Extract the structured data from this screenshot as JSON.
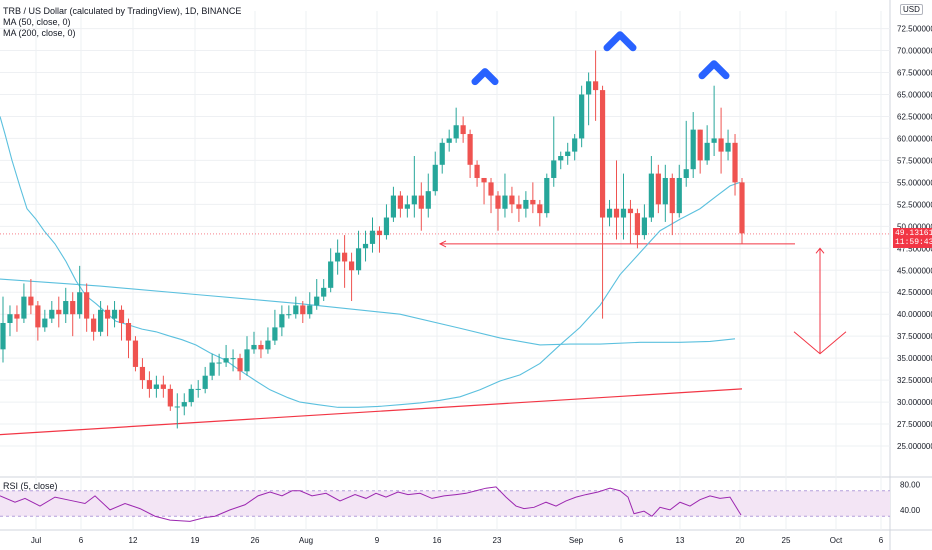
{
  "legend": {
    "symbol": "TRB / US Dollar (calculated by TradingView), 1D, BINANCE",
    "ma50": "MA (50, close, 0)",
    "ma200": "MA (200, close, 0)"
  },
  "rsi": {
    "label": "RSI (5, close)",
    "ticks": [
      "80.00",
      "40.00"
    ]
  },
  "currency_badge": "USD",
  "last_price": {
    "value": "49.131613",
    "countdown": "11:59:43"
  },
  "colors": {
    "up": "#26a69a",
    "down": "#ef5350",
    "ma": "#5bc0de",
    "annotation_red": "#f23645",
    "annotation_blue": "#2962ff",
    "rsi_line": "#9c27b0",
    "rsi_band": "#f3e5f5",
    "grid": "#eef0f3"
  },
  "chart_data": {
    "type": "candlestick",
    "ylim": [
      22.5,
      74.5
    ],
    "yticks": [
      "72.500000",
      "70.000000",
      "67.500000",
      "65.000000",
      "62.500000",
      "60.000000",
      "57.500000",
      "55.000000",
      "52.500000",
      "50.000000",
      "47.500000",
      "45.000000",
      "42.500000",
      "40.000000",
      "37.500000",
      "35.000000",
      "32.500000",
      "30.000000",
      "27.500000",
      "25.000000"
    ],
    "xticks": [
      "Jul",
      "6",
      "12",
      "19",
      "26",
      "Aug",
      "9",
      "16",
      "23",
      "Sep",
      "6",
      "13",
      "20",
      "25",
      "Oct",
      "6"
    ],
    "candles": [
      [
        36.0,
        39.0,
        34.5,
        42.0
      ],
      [
        39.0,
        40.0,
        37.5,
        41.0
      ],
      [
        40.0,
        39.5,
        38.0,
        41.0
      ],
      [
        39.5,
        42.0,
        39.0,
        43.5
      ],
      [
        42.0,
        41.0,
        40.0,
        44.0
      ],
      [
        41.0,
        38.5,
        37.0,
        41.5
      ],
      [
        38.5,
        39.5,
        38.0,
        40.5
      ],
      [
        39.5,
        40.5,
        39.0,
        41.5
      ],
      [
        40.5,
        40.0,
        38.5,
        42.0
      ],
      [
        40.0,
        41.5,
        39.0,
        43.0
      ],
      [
        41.5,
        40.0,
        37.5,
        42.5
      ],
      [
        40.0,
        42.5,
        39.5,
        45.5
      ],
      [
        42.5,
        39.5,
        38.0,
        43.5
      ],
      [
        39.5,
        38.0,
        37.0,
        40.0
      ],
      [
        38.0,
        40.5,
        37.5,
        41.5
      ],
      [
        40.5,
        39.5,
        37.5,
        41.0
      ],
      [
        39.5,
        40.5,
        38.5,
        41.5
      ],
      [
        40.5,
        39.0,
        37.0,
        41.0
      ],
      [
        39.0,
        37.0,
        35.0,
        39.5
      ],
      [
        37.0,
        34.0,
        33.5,
        37.5
      ],
      [
        34.0,
        32.5,
        31.5,
        35.0
      ],
      [
        32.5,
        31.5,
        30.5,
        33.5
      ],
      [
        31.5,
        32.0,
        30.5,
        33.0
      ],
      [
        32.0,
        31.5,
        30.5,
        33.0
      ],
      [
        31.5,
        29.5,
        29.0,
        32.0
      ],
      [
        29.5,
        29.5,
        27.0,
        31.0
      ],
      [
        29.5,
        30.0,
        28.5,
        31.0
      ],
      [
        30.0,
        31.5,
        29.5,
        32.0
      ],
      [
        31.5,
        31.5,
        30.5,
        32.5
      ],
      [
        31.5,
        33.0,
        31.0,
        34.0
      ],
      [
        33.0,
        34.5,
        32.5,
        35.5
      ],
      [
        34.5,
        34.5,
        33.0,
        35.5
      ],
      [
        34.5,
        35.0,
        34.0,
        36.5
      ],
      [
        35.0,
        35.0,
        33.5,
        36.0
      ],
      [
        35.0,
        33.5,
        32.5,
        35.5
      ],
      [
        33.5,
        36.0,
        33.0,
        37.5
      ],
      [
        36.0,
        36.5,
        35.5,
        38.0
      ],
      [
        36.5,
        36.0,
        35.0,
        37.0
      ],
      [
        36.0,
        37.0,
        35.5,
        38.5
      ],
      [
        37.0,
        38.5,
        36.5,
        40.5
      ],
      [
        38.5,
        40.0,
        37.5,
        41.0
      ],
      [
        40.0,
        40.0,
        39.5,
        41.0
      ],
      [
        40.0,
        41.0,
        39.5,
        42.0
      ],
      [
        41.0,
        40.0,
        39.0,
        41.5
      ],
      [
        40.0,
        41.0,
        39.5,
        42.5
      ],
      [
        41.0,
        42.0,
        40.5,
        44.0
      ],
      [
        42.0,
        43.0,
        41.5,
        44.0
      ],
      [
        43.0,
        46.0,
        42.5,
        47.5
      ],
      [
        46.0,
        47.0,
        44.5,
        48.5
      ],
      [
        47.0,
        46.0,
        43.0,
        49.0
      ],
      [
        46.0,
        45.0,
        41.5,
        47.0
      ],
      [
        45.0,
        47.5,
        44.5,
        49.5
      ],
      [
        47.5,
        48.0,
        46.0,
        49.5
      ],
      [
        48.0,
        49.5,
        47.0,
        51.0
      ],
      [
        49.5,
        49.0,
        47.0,
        50.0
      ],
      [
        49.0,
        51.0,
        48.5,
        52.5
      ],
      [
        51.0,
        53.5,
        50.5,
        54.5
      ],
      [
        53.5,
        52.0,
        51.0,
        54.0
      ],
      [
        52.0,
        52.5,
        51.0,
        53.5
      ],
      [
        52.5,
        53.5,
        51.0,
        58.0
      ],
      [
        53.5,
        52.0,
        49.5,
        55.0
      ],
      [
        52.0,
        54.0,
        51.0,
        56.0
      ],
      [
        54.0,
        57.0,
        53.5,
        58.5
      ],
      [
        57.0,
        59.5,
        56.0,
        60.0
      ],
      [
        59.5,
        60.0,
        58.5,
        61.0
      ],
      [
        60.0,
        61.5,
        59.5,
        63.5
      ],
      [
        61.5,
        60.5,
        59.5,
        62.5
      ],
      [
        60.5,
        57.0,
        55.5,
        61.0
      ],
      [
        57.0,
        55.5,
        54.5,
        57.5
      ],
      [
        55.5,
        55.0,
        52.5,
        55.5
      ],
      [
        55.0,
        53.5,
        51.5,
        55.5
      ],
      [
        53.5,
        52.0,
        49.5,
        54.0
      ],
      [
        52.0,
        53.5,
        51.0,
        56.0
      ],
      [
        53.5,
        52.5,
        51.5,
        54.5
      ],
      [
        52.5,
        52.0,
        50.5,
        53.5
      ],
      [
        52.0,
        53.0,
        51.0,
        54.0
      ],
      [
        53.0,
        52.5,
        51.5,
        55.0
      ],
      [
        52.5,
        51.5,
        50.0,
        53.0
      ],
      [
        51.5,
        55.5,
        51.0,
        56.0
      ],
      [
        55.5,
        57.5,
        54.5,
        62.5
      ],
      [
        57.5,
        58.0,
        56.5,
        58.5
      ],
      [
        58.0,
        58.5,
        57.0,
        59.5
      ],
      [
        58.5,
        60.0,
        57.5,
        60.5
      ],
      [
        60.0,
        65.0,
        59.0,
        66.0
      ],
      [
        65.0,
        66.5,
        61.5,
        67.5
      ],
      [
        66.5,
        65.5,
        62.0,
        70.0
      ],
      [
        65.5,
        51.0,
        39.5,
        66.0
      ],
      [
        51.0,
        52.0,
        50.0,
        53.0
      ],
      [
        52.0,
        51.0,
        48.5,
        57.5
      ],
      [
        51.0,
        52.0,
        48.5,
        56.0
      ],
      [
        52.0,
        51.5,
        48.0,
        53.0
      ],
      [
        51.5,
        49.0,
        47.5,
        52.0
      ],
      [
        49.0,
        51.0,
        48.5,
        52.5
      ],
      [
        51.0,
        56.0,
        50.5,
        58.0
      ],
      [
        56.0,
        52.5,
        51.5,
        57.0
      ],
      [
        52.5,
        55.5,
        50.5,
        57.0
      ],
      [
        55.5,
        51.5,
        49.0,
        56.0
      ],
      [
        51.5,
        55.5,
        51.0,
        57.0
      ],
      [
        55.5,
        56.5,
        54.5,
        62.0
      ],
      [
        56.5,
        61.0,
        55.5,
        63.0
      ],
      [
        61.0,
        57.5,
        56.0,
        61.0
      ],
      [
        57.5,
        59.5,
        57.0,
        61.5
      ],
      [
        59.5,
        60.0,
        58.0,
        66.0
      ],
      [
        60.0,
        58.5,
        56.0,
        63.5
      ],
      [
        58.5,
        59.5,
        57.5,
        61.0
      ],
      [
        59.5,
        55.0,
        53.5,
        60.5
      ],
      [
        55.0,
        49.2,
        48.0,
        55.5
      ]
    ],
    "ma50": [
      [
        0,
        62.5
      ],
      [
        5,
        60.5
      ],
      [
        12,
        57.5
      ],
      [
        20,
        54.5
      ],
      [
        27,
        52.0
      ],
      [
        36,
        50.8
      ],
      [
        44,
        49.5
      ],
      [
        55,
        48.0
      ],
      [
        66,
        46.0
      ],
      [
        76,
        43.8
      ],
      [
        86,
        42.1
      ],
      [
        96,
        41.2
      ],
      [
        104,
        40.4
      ],
      [
        116,
        39.2
      ],
      [
        128,
        38.8
      ],
      [
        142,
        38.3
      ],
      [
        156,
        38.0
      ],
      [
        170,
        37.5
      ],
      [
        182,
        37.1
      ],
      [
        196,
        36.5
      ],
      [
        210,
        35.6
      ],
      [
        225,
        34.8
      ],
      [
        240,
        33.6
      ],
      [
        256,
        32.4
      ],
      [
        270,
        31.4
      ],
      [
        288,
        30.5
      ],
      [
        300,
        30.0
      ],
      [
        318,
        29.7
      ],
      [
        338,
        29.4
      ],
      [
        358,
        29.4
      ],
      [
        378,
        29.5
      ],
      [
        400,
        29.7
      ],
      [
        420,
        29.9
      ],
      [
        440,
        30.2
      ],
      [
        460,
        30.6
      ],
      [
        480,
        31.4
      ],
      [
        500,
        32.4
      ],
      [
        520,
        33.1
      ],
      [
        540,
        34.4
      ],
      [
        560,
        36.5
      ],
      [
        580,
        38.5
      ],
      [
        600,
        41.0
      ],
      [
        620,
        44.5
      ],
      [
        640,
        47.0
      ],
      [
        660,
        49.5
      ],
      [
        680,
        50.8
      ],
      [
        700,
        52.0
      ],
      [
        716,
        53.4
      ],
      [
        730,
        54.6
      ],
      [
        740,
        55.0
      ]
    ],
    "ma200": [
      [
        0,
        44.0
      ],
      [
        100,
        43.2
      ],
      [
        200,
        42.2
      ],
      [
        300,
        41.2
      ],
      [
        400,
        40.0
      ],
      [
        460,
        38.4
      ],
      [
        500,
        37.3
      ],
      [
        540,
        36.5
      ],
      [
        570,
        36.6
      ],
      [
        600,
        36.6
      ],
      [
        640,
        36.8
      ],
      [
        680,
        36.8
      ],
      [
        710,
        36.9
      ],
      [
        735,
        37.2
      ]
    ],
    "rsi": [
      [
        0,
        62
      ],
      [
        15,
        52
      ],
      [
        25,
        58
      ],
      [
        40,
        46
      ],
      [
        55,
        60
      ],
      [
        70,
        55
      ],
      [
        85,
        50
      ],
      [
        95,
        62
      ],
      [
        110,
        40
      ],
      [
        125,
        50
      ],
      [
        140,
        42
      ],
      [
        155,
        30
      ],
      [
        170,
        24
      ],
      [
        190,
        22
      ],
      [
        205,
        28
      ],
      [
        215,
        30
      ],
      [
        230,
        40
      ],
      [
        245,
        48
      ],
      [
        258,
        62
      ],
      [
        270,
        68
      ],
      [
        282,
        62
      ],
      [
        292,
        70
      ],
      [
        300,
        70
      ],
      [
        312,
        62
      ],
      [
        326,
        66
      ],
      [
        340,
        54
      ],
      [
        355,
        64
      ],
      [
        366,
        58
      ],
      [
        376,
        66
      ],
      [
        386,
        60
      ],
      [
        398,
        68
      ],
      [
        408,
        64
      ],
      [
        420,
        66
      ],
      [
        432,
        58
      ],
      [
        444,
        62
      ],
      [
        456,
        64
      ],
      [
        466,
        66
      ],
      [
        476,
        70
      ],
      [
        486,
        74
      ],
      [
        496,
        76
      ],
      [
        506,
        60
      ],
      [
        516,
        46
      ],
      [
        524,
        42
      ],
      [
        534,
        44
      ],
      [
        546,
        52
      ],
      [
        556,
        46
      ],
      [
        566,
        54
      ],
      [
        576,
        60
      ],
      [
        586,
        64
      ],
      [
        598,
        68
      ],
      [
        610,
        74
      ],
      [
        620,
        70
      ],
      [
        628,
        60
      ],
      [
        634,
        34
      ],
      [
        644,
        38
      ],
      [
        652,
        30
      ],
      [
        660,
        44
      ],
      [
        670,
        40
      ],
      [
        680,
        52
      ],
      [
        690,
        46
      ],
      [
        700,
        56
      ],
      [
        710,
        62
      ],
      [
        720,
        58
      ],
      [
        730,
        60
      ],
      [
        741,
        32
      ]
    ]
  }
}
